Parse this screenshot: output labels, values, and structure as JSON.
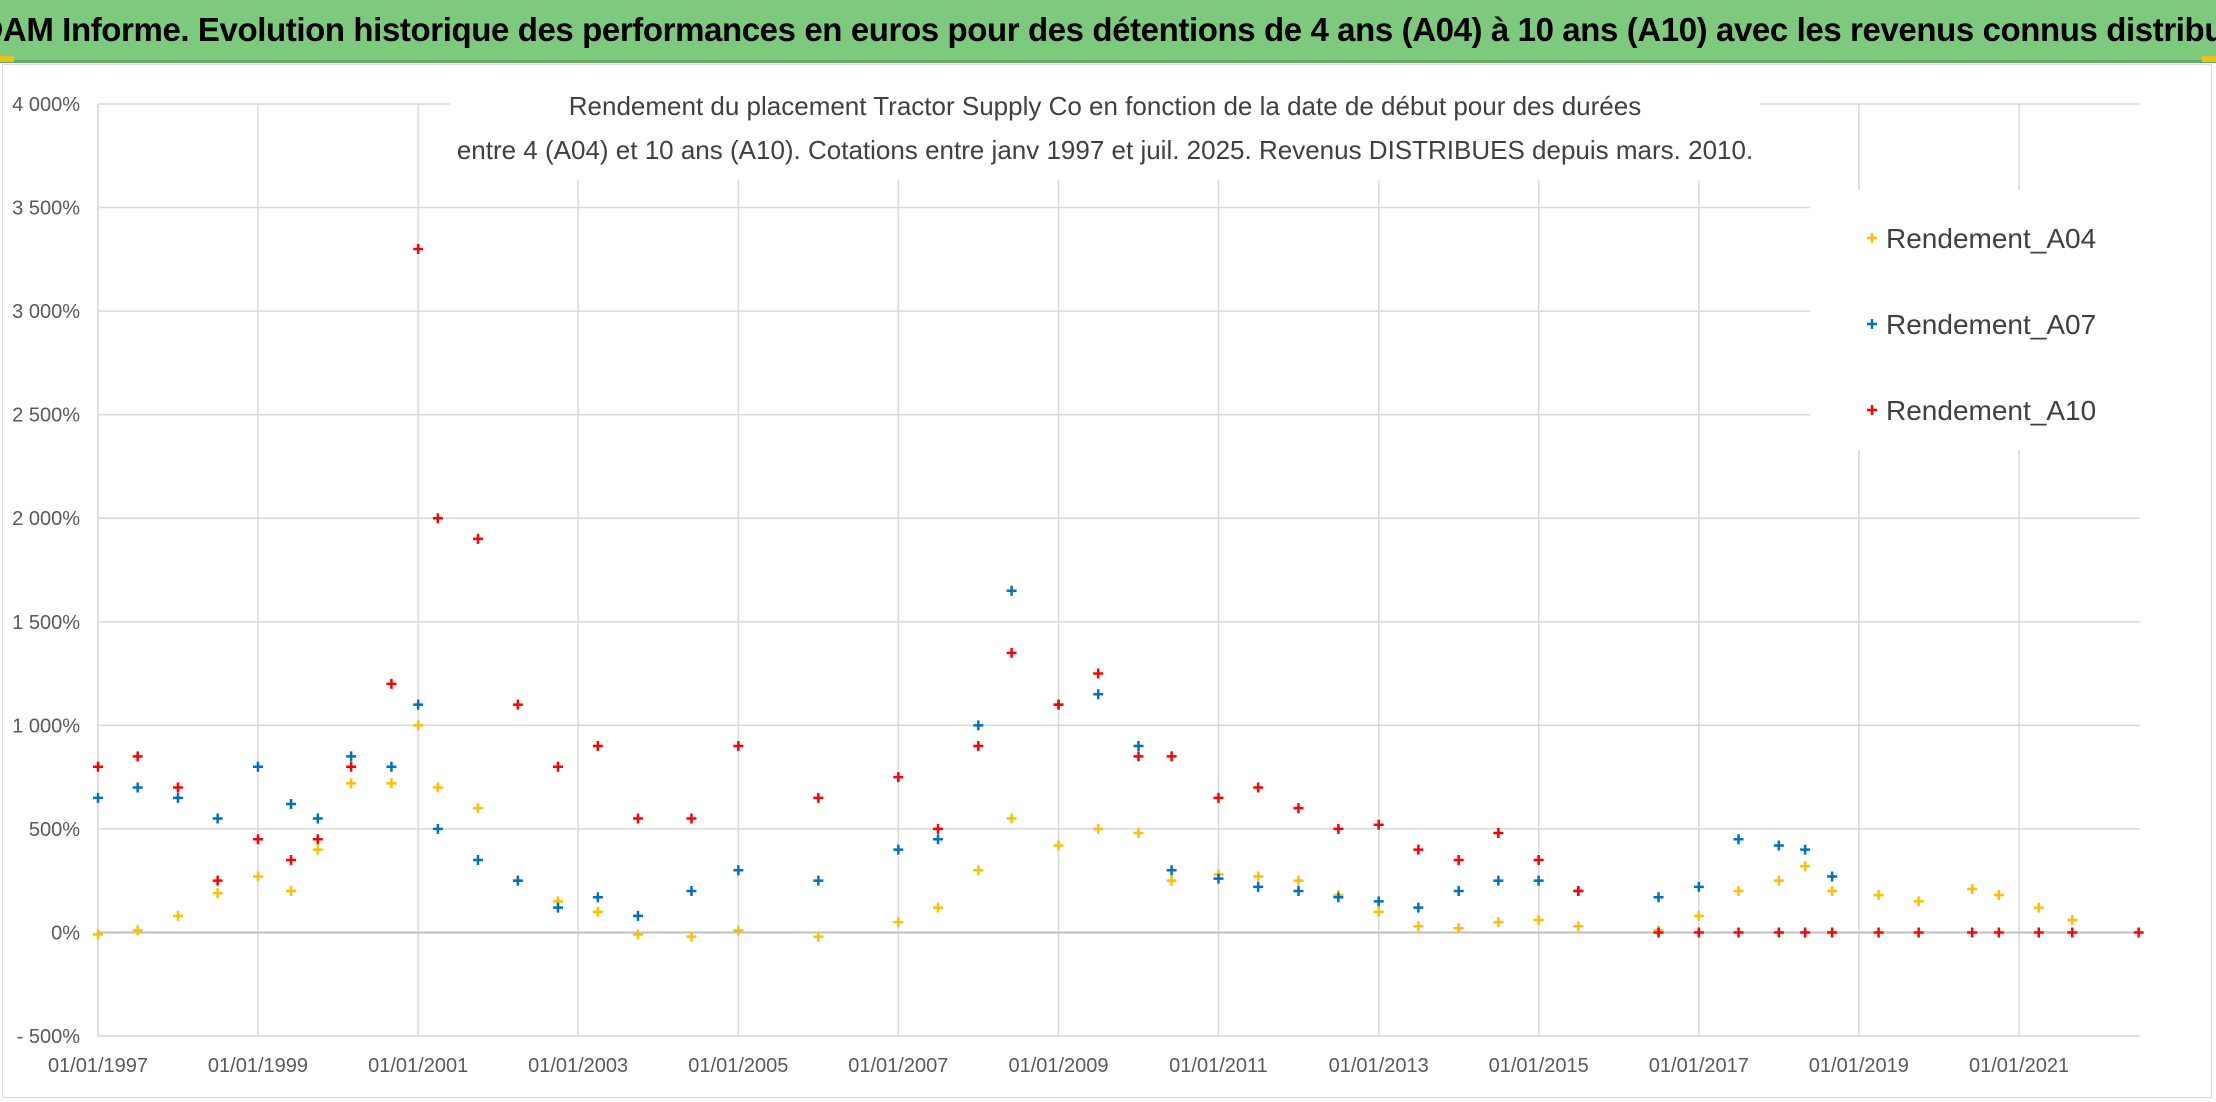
{
  "banner": {
    "title": "ADAM Informe. Evolution historique des performances en euros pour des détentions de 4 ans (A04) à 10 ans (A10) avec les revenus connus distribués"
  },
  "colors": {
    "banner_bg": "#7dc97d",
    "Rendement_A04": "#ffc000",
    "Rendement_A07": "#0070c0",
    "Rendement_A10": "#ff0000",
    "gridlines": "#d9d9d9"
  },
  "chart_data": {
    "type": "scatter",
    "title": [
      "Rendement du placement Tractor Supply Co en fonction de la date de début pour des durées",
      "entre 4 (A04) et 10 ans (A10). Cotations entre janv 1997 et juil. 2025. Revenus DISTRIBUES depuis mars. 2010."
    ],
    "xlabel": "",
    "ylabel": "",
    "x_range": [
      "01/01/1997",
      "07/07/2022"
    ],
    "x_tick_labels": [
      "01/01/1997",
      "01/01/1999",
      "01/01/2001",
      "01/01/2003",
      "01/01/2005",
      "01/01/2007",
      "01/01/2009",
      "01/01/2011",
      "01/01/2013",
      "01/01/2015",
      "01/01/2017",
      "01/01/2019",
      "01/01/2021"
    ],
    "y_range": [
      -500,
      4000
    ],
    "y_ticks": [
      -500,
      0,
      500,
      1000,
      1500,
      2000,
      2500,
      3000,
      3500,
      4000
    ],
    "y_tick_labels": [
      "- 500%",
      "0%",
      "500%",
      "1 000%",
      "1 500%",
      "2 000%",
      "2 500%",
      "3 000%",
      "3 500%",
      "4 000%"
    ],
    "y_unit": "%",
    "marker": "+",
    "grid": true,
    "legend_position": "top-right",
    "series": [
      {
        "name": "Rendement_A04",
        "color": "#ffc000",
        "points": [
          [
            "1997-01-01",
            -10
          ],
          [
            "1997-07-01",
            10
          ],
          [
            "1998-01-01",
            80
          ],
          [
            "1998-07-01",
            190
          ],
          [
            "1999-01-01",
            270
          ],
          [
            "1999-06-01",
            200
          ],
          [
            "1999-10-01",
            400
          ],
          [
            "2000-03-01",
            720
          ],
          [
            "2000-09-01",
            720
          ],
          [
            "2001-01-01",
            1000
          ],
          [
            "2001-04-01",
            700
          ],
          [
            "2001-10-01",
            600
          ],
          [
            "2002-04-01",
            250
          ],
          [
            "2002-10-01",
            150
          ],
          [
            "2003-04-01",
            100
          ],
          [
            "2003-10-01",
            -10
          ],
          [
            "2004-06-01",
            -20
          ],
          [
            "2005-01-01",
            10
          ],
          [
            "2006-01-01",
            -20
          ],
          [
            "2007-01-01",
            50
          ],
          [
            "2007-07-01",
            120
          ],
          [
            "2008-01-01",
            300
          ],
          [
            "2008-06-01",
            550
          ],
          [
            "2009-01-01",
            420
          ],
          [
            "2009-07-01",
            500
          ],
          [
            "2010-01-01",
            480
          ],
          [
            "2010-06-01",
            250
          ],
          [
            "2011-01-01",
            280
          ],
          [
            "2011-07-01",
            270
          ],
          [
            "2012-01-01",
            250
          ],
          [
            "2012-07-01",
            180
          ],
          [
            "2013-01-01",
            100
          ],
          [
            "2013-07-01",
            30
          ],
          [
            "2014-01-01",
            20
          ],
          [
            "2014-07-01",
            50
          ],
          [
            "2015-01-01",
            60
          ],
          [
            "2015-07-01",
            30
          ],
          [
            "2016-07-01",
            10
          ],
          [
            "2017-01-01",
            80
          ],
          [
            "2017-07-01",
            200
          ],
          [
            "2018-01-01",
            250
          ],
          [
            "2018-05-01",
            320
          ],
          [
            "2018-09-01",
            200
          ],
          [
            "2019-04-01",
            180
          ],
          [
            "2019-10-01",
            150
          ],
          [
            "2020-06-01",
            210
          ],
          [
            "2020-10-01",
            180
          ],
          [
            "2021-04-01",
            120
          ],
          [
            "2021-09-01",
            60
          ]
        ]
      },
      {
        "name": "Rendement_A07",
        "color": "#0070c0",
        "points": [
          [
            "1997-01-01",
            650
          ],
          [
            "1997-07-01",
            700
          ],
          [
            "1998-01-01",
            650
          ],
          [
            "1998-07-01",
            550
          ],
          [
            "1999-01-01",
            800
          ],
          [
            "1999-06-01",
            620
          ],
          [
            "1999-10-01",
            550
          ],
          [
            "2000-03-01",
            850
          ],
          [
            "2000-09-01",
            800
          ],
          [
            "2001-01-01",
            1100
          ],
          [
            "2001-04-01",
            500
          ],
          [
            "2001-10-01",
            350
          ],
          [
            "2002-04-01",
            250
          ],
          [
            "2002-10-01",
            120
          ],
          [
            "2003-04-01",
            170
          ],
          [
            "2003-10-01",
            80
          ],
          [
            "2004-06-01",
            200
          ],
          [
            "2005-01-01",
            300
          ],
          [
            "2006-01-01",
            250
          ],
          [
            "2007-01-01",
            400
          ],
          [
            "2007-07-01",
            450
          ],
          [
            "2008-01-01",
            1000
          ],
          [
            "2008-06-01",
            1650
          ],
          [
            "2009-01-01",
            1100
          ],
          [
            "2009-07-01",
            1150
          ],
          [
            "2010-01-01",
            900
          ],
          [
            "2010-06-01",
            300
          ],
          [
            "2011-01-01",
            260
          ],
          [
            "2011-07-01",
            220
          ],
          [
            "2012-01-01",
            200
          ],
          [
            "2012-07-01",
            170
          ],
          [
            "2013-01-01",
            150
          ],
          [
            "2013-07-01",
            120
          ],
          [
            "2014-01-01",
            200
          ],
          [
            "2014-07-01",
            250
          ],
          [
            "2015-01-01",
            250
          ],
          [
            "2015-07-01",
            200
          ],
          [
            "2016-07-01",
            170
          ],
          [
            "2017-01-01",
            220
          ],
          [
            "2017-07-01",
            450
          ],
          [
            "2018-01-01",
            420
          ],
          [
            "2018-05-01",
            400
          ],
          [
            "2018-09-01",
            270
          ]
        ]
      },
      {
        "name": "Rendement_A10",
        "color": "#ff0000",
        "points": [
          [
            "1997-01-01",
            800
          ],
          [
            "1997-07-01",
            850
          ],
          [
            "1998-01-01",
            700
          ],
          [
            "1998-07-01",
            250
          ],
          [
            "1999-01-01",
            450
          ],
          [
            "1999-06-01",
            350
          ],
          [
            "1999-10-01",
            450
          ],
          [
            "2000-03-01",
            800
          ],
          [
            "2000-09-01",
            1200
          ],
          [
            "2001-01-01",
            3300
          ],
          [
            "2001-04-01",
            2000
          ],
          [
            "2001-10-01",
            1900
          ],
          [
            "2002-04-01",
            1100
          ],
          [
            "2002-10-01",
            800
          ],
          [
            "2003-04-01",
            900
          ],
          [
            "2003-10-01",
            550
          ],
          [
            "2004-06-01",
            550
          ],
          [
            "2005-01-01",
            900
          ],
          [
            "2006-01-01",
            650
          ],
          [
            "2007-01-01",
            750
          ],
          [
            "2007-07-01",
            500
          ],
          [
            "2008-01-01",
            900
          ],
          [
            "2008-06-01",
            1350
          ],
          [
            "2009-01-01",
            1100
          ],
          [
            "2009-07-01",
            1250
          ],
          [
            "2010-01-01",
            850
          ],
          [
            "2010-06-01",
            850
          ],
          [
            "2011-01-01",
            650
          ],
          [
            "2011-07-01",
            700
          ],
          [
            "2012-01-01",
            600
          ],
          [
            "2012-07-01",
            500
          ],
          [
            "2013-01-01",
            520
          ],
          [
            "2013-07-01",
            400
          ],
          [
            "2014-01-01",
            350
          ],
          [
            "2014-07-01",
            480
          ],
          [
            "2015-01-01",
            350
          ],
          [
            "2015-07-01",
            200
          ],
          [
            "2016-07-01",
            0
          ],
          [
            "2017-01-01",
            0
          ],
          [
            "2017-07-01",
            0
          ],
          [
            "2018-01-01",
            0
          ],
          [
            "2018-05-01",
            0
          ],
          [
            "2018-09-01",
            0
          ],
          [
            "2019-04-01",
            0
          ],
          [
            "2019-10-01",
            0
          ],
          [
            "2020-06-01",
            0
          ],
          [
            "2020-10-01",
            0
          ],
          [
            "2021-04-01",
            0
          ],
          [
            "2021-09-01",
            0
          ],
          [
            "2022-07-01",
            0
          ]
        ]
      }
    ]
  }
}
